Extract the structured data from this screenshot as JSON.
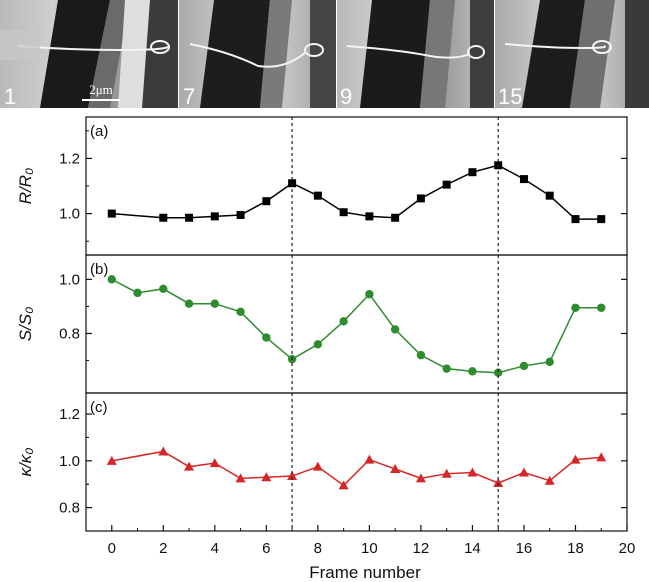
{
  "image_strip": {
    "frames": [
      {
        "label": "1"
      },
      {
        "label": "7"
      },
      {
        "label": "9"
      },
      {
        "label": "15"
      }
    ],
    "scale_bar_label": "2μm"
  },
  "chart_data": [
    {
      "type": "line",
      "panel_label": "(a)",
      "ylabel": "R/R₀",
      "ylim": [
        0.85,
        1.35
      ],
      "yticks": [
        "1.0",
        "1.2"
      ],
      "color": "#000000",
      "marker": "square",
      "x": [
        0,
        2,
        3,
        4,
        5,
        6,
        7,
        8,
        9,
        10,
        11,
        12,
        13,
        14,
        15,
        16,
        17,
        18,
        19
      ],
      "values": [
        1.0,
        0.985,
        0.985,
        0.99,
        0.995,
        1.045,
        1.11,
        1.065,
        1.005,
        0.99,
        0.985,
        1.055,
        1.105,
        1.15,
        1.175,
        1.125,
        1.065,
        0.98,
        0.98
      ]
    },
    {
      "type": "line",
      "panel_label": "(b)",
      "ylabel": "S/S₀",
      "ylim": [
        0.58,
        1.09
      ],
      "yticks": [
        "0.8",
        "1.0"
      ],
      "color": "#2e8b2e",
      "marker": "circle",
      "x": [
        0,
        1,
        2,
        3,
        4,
        5,
        6,
        7,
        8,
        9,
        10,
        11,
        12,
        13,
        14,
        15,
        16,
        17,
        18,
        19
      ],
      "values": [
        1.0,
        0.95,
        0.965,
        0.91,
        0.91,
        0.88,
        0.785,
        0.705,
        0.76,
        0.845,
        0.945,
        0.815,
        0.72,
        0.67,
        0.66,
        0.655,
        0.68,
        0.695,
        0.895,
        0.895
      ]
    },
    {
      "type": "line",
      "panel_label": "(c)",
      "ylabel": "κ/κ₀",
      "ylim": [
        0.7,
        1.29
      ],
      "yticks": [
        "0.8",
        "1.0",
        "1.2"
      ],
      "color": "#d62728",
      "marker": "triangle",
      "x": [
        0,
        2,
        3,
        4,
        5,
        6,
        7,
        8,
        9,
        10,
        11,
        12,
        13,
        14,
        15,
        16,
        17,
        18,
        19
      ],
      "values": [
        1.0,
        1.04,
        0.975,
        0.99,
        0.925,
        0.93,
        0.935,
        0.975,
        0.895,
        1.005,
        0.965,
        0.925,
        0.945,
        0.95,
        0.905,
        0.95,
        0.915,
        1.005,
        1.015
      ]
    }
  ],
  "x_axis": {
    "label": "Frame number",
    "xlim": [
      -1,
      20
    ],
    "ticks": [
      "0",
      "2",
      "4",
      "6",
      "8",
      "10",
      "12",
      "14",
      "16",
      "18",
      "20"
    ]
  },
  "reference_lines_x": [
    7,
    15
  ]
}
